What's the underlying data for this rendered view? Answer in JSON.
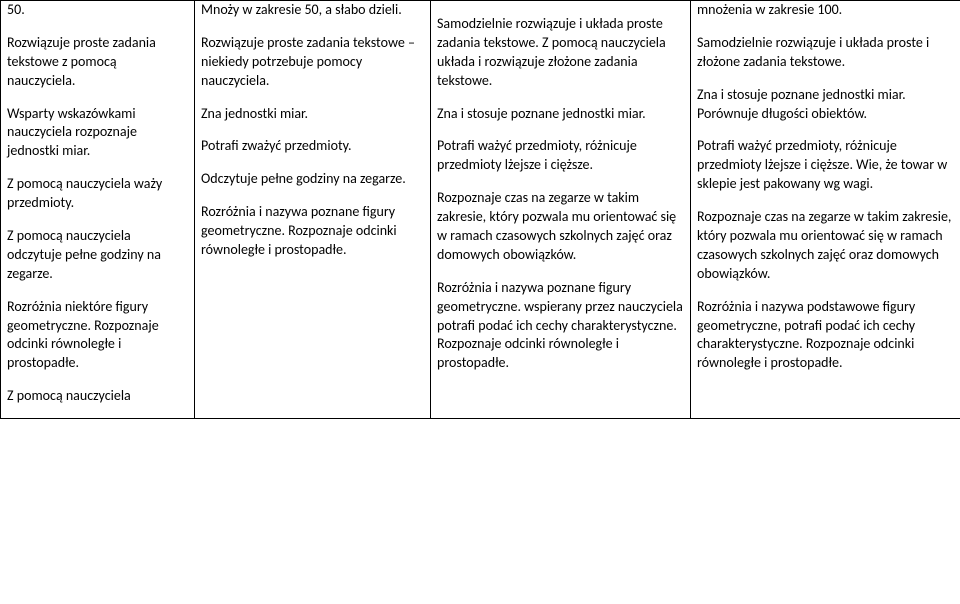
{
  "table": {
    "columns": 4,
    "row": {
      "c1": {
        "blocks": [
          "50.",
          "Rozwiązuje proste zadania tekstowe z pomocą nauczyciela.",
          "Wsparty wskazówkami nauczyciela rozpoznaje  jednostki miar.",
          "Z pomocą nauczyciela waży przedmioty.",
          "Z pomocą nauczyciela odczytuje pełne godziny na zegarze.",
          "Rozróżnia niektóre  figury geometryczne. Rozpoznaje odcinki równoległe i prostopadłe.",
          "Z pomocą nauczyciela"
        ]
      },
      "c2": {
        "blocks": [
          "Mnoży w zakresie 50, a słabo dzieli.",
          "Rozwiązuje proste zadania tekstowe –niekiedy potrzebuje pomocy nauczyciela.",
          "Zna jednostki miar.",
          "Potrafi zważyć przedmioty.",
          "Odczytuje pełne godziny na zegarze.",
          "Rozróżnia i nazywa  poznane figury geometryczne. Rozpoznaje odcinki równoległe i prostopadłe."
        ]
      },
      "c3": {
        "blocks": [
          "",
          "Samodzielnie rozwiązuje i układa proste zadania tekstowe. Z pomocą nauczyciela układa i rozwiązuje złożone zadania tekstowe.",
          "Zna i stosuje poznane jednostki miar.",
          "Potrafi ważyć przedmioty, różnicuje przedmioty lżejsze i cięższe.",
          "Rozpoznaje czas na zegarze w takim zakresie, który pozwala mu orientować się w ramach czasowych szkolnych zajęć oraz domowych obowiązków.",
          "Rozróżnia i nazywa poznane figury geometryczne. wspierany przez nauczyciela  potrafi podać ich cechy charakterystyczne. Rozpoznaje odcinki równoległe i prostopadłe."
        ]
      },
      "c4": {
        "blocks": [
          "mnożenia w zakresie 100.",
          "Samodzielnie rozwiązuje  i układa proste i złożone zadania tekstowe.",
          "Zna i stosuje poznane jednostki miar. Porównuje długości obiektów.",
          "Potrafi ważyć przedmioty, różnicuje przedmioty lżejsze i cięższe. Wie, że towar w sklepie jest pakowany wg wagi.",
          "Rozpoznaje czas na zegarze w takim zakresie, który pozwala mu orientować się w ramach czasowych szkolnych zajęć oraz domowych obowiązków.",
          "Rozróżnia i nazywa podstawowe figury geometryczne, potrafi podać ich cechy charakterystyczne. Rozpoznaje odcinki równoległe i prostopadłe."
        ]
      }
    }
  }
}
